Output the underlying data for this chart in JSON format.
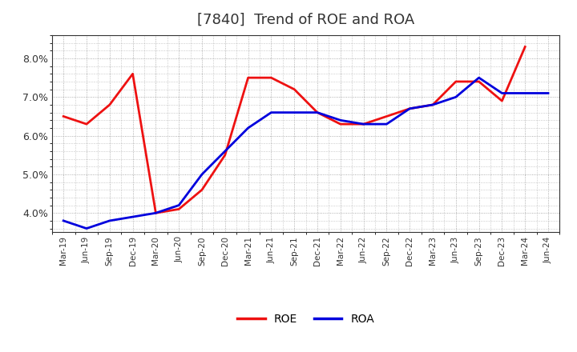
{
  "title": "[7840]  Trend of ROE and ROA",
  "title_fontsize": 13,
  "ylim": [
    0.035,
    0.086
  ],
  "yticks": [
    0.04,
    0.05,
    0.06,
    0.07,
    0.08
  ],
  "background_color": "#ffffff",
  "plot_bg_color": "#ffffff",
  "grid_color": "#999999",
  "roe_color": "#ee1111",
  "roa_color": "#0000dd",
  "line_width": 2.0,
  "dates": [
    "Mar-19",
    "Jun-19",
    "Sep-19",
    "Dec-19",
    "Mar-20",
    "Jun-20",
    "Sep-20",
    "Dec-20",
    "Mar-21",
    "Jun-21",
    "Sep-21",
    "Dec-21",
    "Mar-22",
    "Jun-22",
    "Sep-22",
    "Dec-22",
    "Mar-23",
    "Jun-23",
    "Sep-23",
    "Dec-23",
    "Mar-24",
    "Jun-24"
  ],
  "roe": [
    0.065,
    0.063,
    0.068,
    0.076,
    0.04,
    0.041,
    0.046,
    0.055,
    0.075,
    0.075,
    0.072,
    0.066,
    0.063,
    0.063,
    0.065,
    0.067,
    0.068,
    0.074,
    0.074,
    0.069,
    0.083,
    null
  ],
  "roa": [
    0.038,
    0.036,
    0.038,
    0.039,
    0.04,
    0.042,
    0.05,
    0.056,
    0.062,
    0.066,
    0.066,
    0.066,
    0.064,
    0.063,
    0.063,
    0.067,
    0.068,
    0.07,
    0.075,
    0.071,
    0.071,
    0.071
  ]
}
